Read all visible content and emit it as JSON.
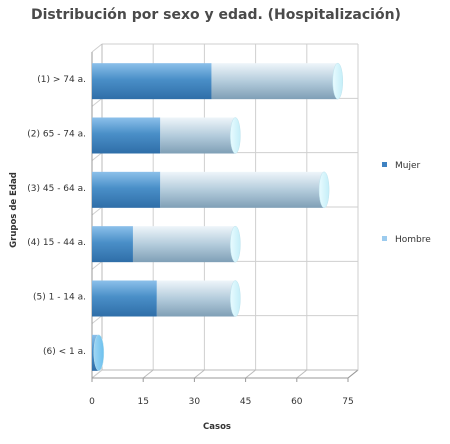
{
  "chart_data": {
    "type": "bar",
    "orientation": "horizontal",
    "stacked": true,
    "title": "Distribución por sexo y edad. (Hospitalización)",
    "xlabel": "Casos",
    "ylabel": "Grupos de Edad",
    "xlim": [
      0,
      75
    ],
    "x_ticks": [
      0,
      15,
      30,
      45,
      60,
      75
    ],
    "grid": true,
    "legend_position": "right",
    "categories": [
      "(1) > 74 a.",
      "(2) 65 - 74 a.",
      "(3) 45 - 64 a.",
      "(4) 15 - 44 a.",
      "(5) 1 - 14 a.",
      "(6) < 1 a."
    ],
    "series": [
      {
        "name": "Mujer",
        "values": [
          35,
          20,
          20,
          12,
          19,
          2
        ],
        "color": "#4a8fc8"
      },
      {
        "name": "Hombre",
        "values": [
          37,
          22,
          48,
          30,
          23,
          0
        ],
        "color": "#a8c8e0"
      }
    ]
  }
}
